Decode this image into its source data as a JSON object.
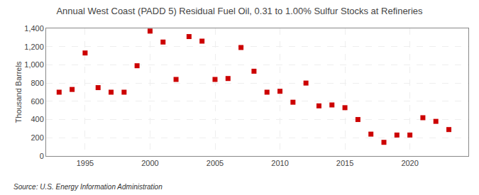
{
  "chart_data": {
    "type": "scatter",
    "title": "Annual West Coast (PADD 5) Residual Fuel Oil, 0.31 to 1.00% Sulfur Stocks at Refineries",
    "ylabel": "Thousand Barrels",
    "annotations": [
      "Source: U.S. Energy Information Administration"
    ],
    "x": [
      1993,
      1994,
      1995,
      1996,
      1997,
      1998,
      1999,
      2000,
      2001,
      2002,
      2003,
      2004,
      2005,
      2006,
      2007,
      2008,
      2009,
      2010,
      2011,
      2012,
      2013,
      2014,
      2015,
      2016,
      2017,
      2018,
      2019,
      2020,
      2021,
      2022,
      2023
    ],
    "values": [
      700,
      730,
      1130,
      750,
      700,
      700,
      990,
      1370,
      1250,
      840,
      1310,
      1260,
      840,
      850,
      1190,
      930,
      700,
      710,
      590,
      800,
      550,
      560,
      530,
      400,
      240,
      150,
      230,
      230,
      420,
      380,
      290
    ],
    "color": "#cc0000",
    "marker": "square",
    "xlim": [
      1992,
      2024.5
    ],
    "xticks": [
      1995,
      2000,
      2005,
      2010,
      2015,
      2020
    ],
    "ylim": [
      0,
      1400
    ],
    "yticks": [
      0,
      200,
      400,
      600,
      800,
      {
        "value": 1000,
        "label": "1,000"
      },
      {
        "value": 1200,
        "label": "1,200"
      },
      {
        "value": 1400,
        "label": "1,400"
      }
    ],
    "grid": true
  }
}
